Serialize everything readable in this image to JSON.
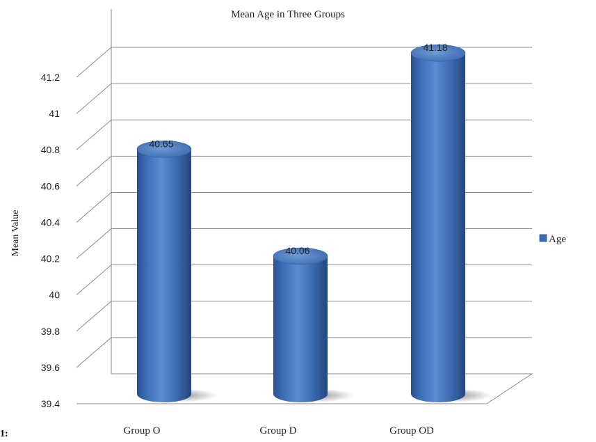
{
  "chart_data": {
    "type": "bar",
    "title": "Mean Age in Three Groups",
    "ylabel": "Mean Value",
    "xlabel": "",
    "categories": [
      "Group O",
      "Group D",
      "Group OD"
    ],
    "series": [
      {
        "name": "Age",
        "values": [
          40.65,
          40.06,
          41.18
        ],
        "color": "#3b6db5"
      }
    ],
    "data_labels": [
      "40.65",
      "40.06",
      "41.18"
    ],
    "ylim": [
      39.4,
      41.2
    ],
    "yticks": [
      "39.4",
      "39.6",
      "39.8",
      "40",
      "40.2",
      "40.4",
      "40.6",
      "40.8",
      "41",
      "41.2"
    ],
    "grid": true,
    "legend_position": "right",
    "style": "3d-cylinder"
  },
  "stray_text": "1:"
}
